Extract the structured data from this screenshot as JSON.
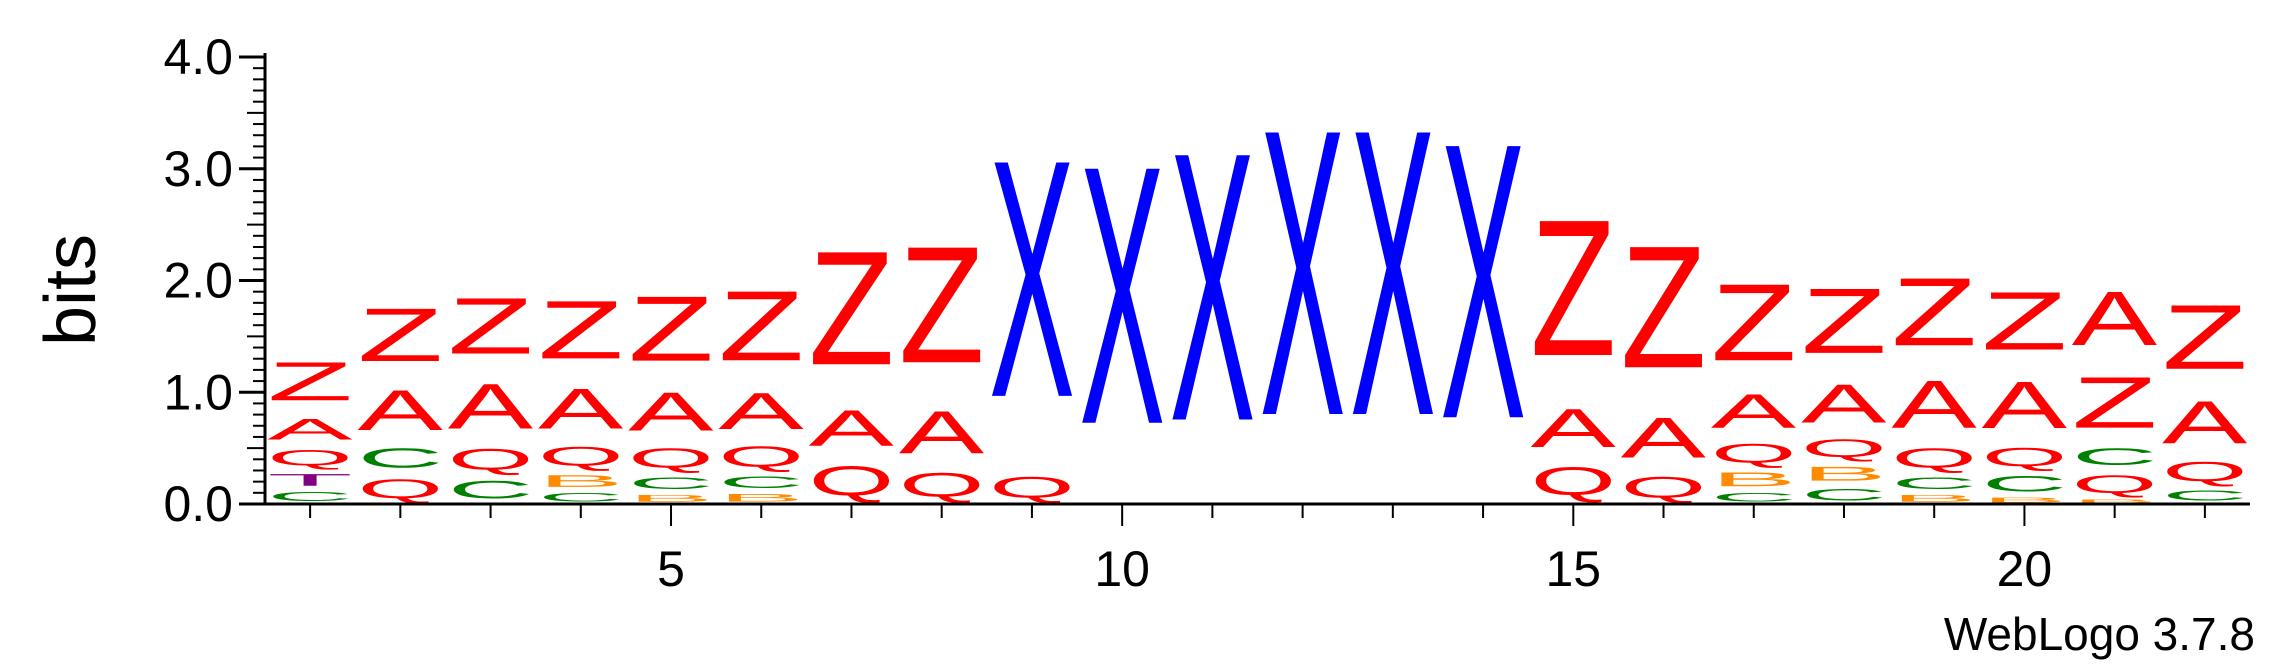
{
  "chart_data": {
    "type": "sequence-logo",
    "ylabel": "bits",
    "ylim": [
      0,
      4.0
    ],
    "y_ticks": [
      "0.0",
      "1.0",
      "2.0",
      "3.0",
      "4.0"
    ],
    "x_ticks": [
      5,
      10,
      15,
      20
    ],
    "positions": [
      1,
      22
    ],
    "credit": "WebLogo 3.7.8",
    "colors": {
      "Z": "#ff0000",
      "A": "#ff0000",
      "Q": "#ff0000",
      "X": "#0000ff",
      "C": "#008000",
      "B": "#ff8c00",
      "T": "#800080"
    },
    "columns": [
      {
        "pos": 1,
        "stack": [
          {
            "letter": "C",
            "bits": 0.13
          },
          {
            "letter": "T",
            "bits": 0.17
          },
          {
            "letter": "Q",
            "bits": 0.22
          },
          {
            "letter": "A",
            "bits": 0.3
          },
          {
            "letter": "Z",
            "bits": 0.55
          }
        ]
      },
      {
        "pos": 2,
        "stack": [
          {
            "letter": "Q",
            "bits": 0.27
          },
          {
            "letter": "C",
            "bits": 0.28
          },
          {
            "letter": "A",
            "bits": 0.58
          },
          {
            "letter": "Z",
            "bits": 0.76
          }
        ]
      },
      {
        "pos": 3,
        "stack": [
          {
            "letter": "C",
            "bits": 0.25
          },
          {
            "letter": "Q",
            "bits": 0.3
          },
          {
            "letter": "A",
            "bits": 0.64
          },
          {
            "letter": "Z",
            "bits": 0.8
          }
        ]
      },
      {
        "pos": 4,
        "stack": [
          {
            "letter": "C",
            "bits": 0.12
          },
          {
            "letter": "B",
            "bits": 0.17
          },
          {
            "letter": "Q",
            "bits": 0.27
          },
          {
            "letter": "A",
            "bits": 0.58
          },
          {
            "letter": "Z",
            "bits": 0.83
          }
        ]
      },
      {
        "pos": 5,
        "stack": [
          {
            "letter": "B",
            "bits": 0.1
          },
          {
            "letter": "C",
            "bits": 0.17
          },
          {
            "letter": "Q",
            "bits": 0.28
          },
          {
            "letter": "A",
            "bits": 0.55
          },
          {
            "letter": "Z",
            "bits": 0.93
          }
        ]
      },
      {
        "pos": 6,
        "stack": [
          {
            "letter": "B",
            "bits": 0.11
          },
          {
            "letter": "C",
            "bits": 0.17
          },
          {
            "letter": "Q",
            "bits": 0.29
          },
          {
            "letter": "A",
            "bits": 0.52
          },
          {
            "letter": "Z",
            "bits": 1.0
          }
        ]
      },
      {
        "pos": 7,
        "stack": [
          {
            "letter": "Q",
            "bits": 0.42
          },
          {
            "letter": "A",
            "bits": 0.51
          },
          {
            "letter": "Z",
            "bits": 1.63
          }
        ]
      },
      {
        "pos": 8,
        "stack": [
          {
            "letter": "Q",
            "bits": 0.34
          },
          {
            "letter": "A",
            "bits": 0.6
          },
          {
            "letter": "Z",
            "bits": 1.67
          }
        ]
      },
      {
        "pos": 9,
        "stack": [
          {
            "letter": "Q",
            "bits": 0.3
          },
          {
            "letter": "X",
            "bits": 3.4
          }
        ]
      },
      {
        "pos": 10,
        "stack": [
          {
            "letter": "X",
            "bits": 3.7
          }
        ]
      },
      {
        "pos": 11,
        "stack": [
          {
            "letter": "X",
            "bits": 3.85
          }
        ]
      },
      {
        "pos": 12,
        "stack": [
          {
            "letter": "X",
            "bits": 4.1
          }
        ]
      },
      {
        "pos": 13,
        "stack": [
          {
            "letter": "X",
            "bits": 4.1
          }
        ]
      },
      {
        "pos": 14,
        "stack": [
          {
            "letter": "X",
            "bits": 3.95
          }
        ]
      },
      {
        "pos": 15,
        "stack": [
          {
            "letter": "Q",
            "bits": 0.4
          },
          {
            "letter": "A",
            "bits": 0.55
          },
          {
            "letter": "Z",
            "bits": 1.95
          }
        ]
      },
      {
        "pos": 16,
        "stack": [
          {
            "letter": "Q",
            "bits": 0.3
          },
          {
            "letter": "A",
            "bits": 0.58
          },
          {
            "letter": "Z",
            "bits": 1.75
          }
        ]
      },
      {
        "pos": 17,
        "stack": [
          {
            "letter": "C",
            "bits": 0.12
          },
          {
            "letter": "B",
            "bits": 0.2
          },
          {
            "letter": "Q",
            "bits": 0.27
          },
          {
            "letter": "A",
            "bits": 0.48
          },
          {
            "letter": "Z",
            "bits": 1.1
          }
        ]
      },
      {
        "pos": 18,
        "stack": [
          {
            "letter": "C",
            "bits": 0.17
          },
          {
            "letter": "B",
            "bits": 0.2
          },
          {
            "letter": "Q",
            "bits": 0.25
          },
          {
            "letter": "A",
            "bits": 0.55
          },
          {
            "letter": "Z",
            "bits": 0.93
          }
        ]
      },
      {
        "pos": 19,
        "stack": [
          {
            "letter": "B",
            "bits": 0.1
          },
          {
            "letter": "C",
            "bits": 0.17
          },
          {
            "letter": "Q",
            "bits": 0.28
          },
          {
            "letter": "A",
            "bits": 0.68
          },
          {
            "letter": "Z",
            "bits": 0.97
          }
        ]
      },
      {
        "pos": 20,
        "stack": [
          {
            "letter": "B",
            "bits": 0.07
          },
          {
            "letter": "C",
            "bits": 0.22
          },
          {
            "letter": "Q",
            "bits": 0.26
          },
          {
            "letter": "A",
            "bits": 0.67
          },
          {
            "letter": "Z",
            "bits": 0.83
          }
        ]
      },
      {
        "pos": 21,
        "stack": [
          {
            "letter": "B",
            "bits": 0.05
          },
          {
            "letter": "Q",
            "bits": 0.25
          },
          {
            "letter": "C",
            "bits": 0.24
          },
          {
            "letter": "Z",
            "bits": 0.73
          },
          {
            "letter": "A",
            "bits": 0.77
          }
        ]
      },
      {
        "pos": 22,
        "stack": [
          {
            "letter": "C",
            "bits": 0.15
          },
          {
            "letter": "Q",
            "bits": 0.28
          },
          {
            "letter": "A",
            "bits": 0.6
          },
          {
            "letter": "Z",
            "bits": 0.92
          }
        ]
      }
    ]
  }
}
